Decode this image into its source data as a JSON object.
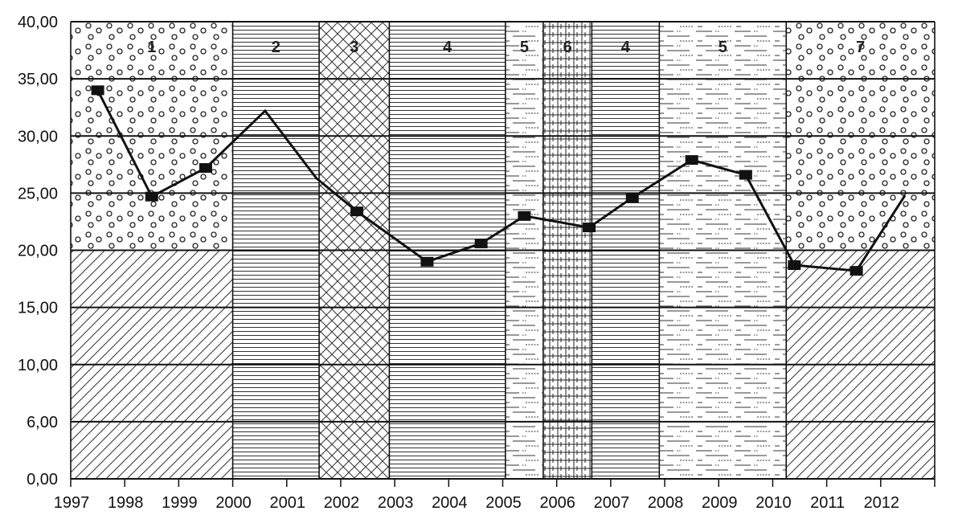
{
  "chart_data": {
    "type": "line",
    "title": "",
    "xlabel": "",
    "ylabel": "",
    "x_labels": [
      "1997",
      "1998",
      "1999",
      "2000",
      "2001",
      "2002",
      "2003",
      "2004",
      "2005",
      "2006",
      "2007",
      "2008",
      "2009",
      "2010",
      "2011",
      "2012"
    ],
    "y_tick_labels": [
      "0,00",
      "6,00",
      "10,00",
      "15,00",
      "20,00",
      "25,00",
      "30,00",
      "35,00",
      "40,00"
    ],
    "ylim": [
      0,
      40
    ],
    "grid": true,
    "zones": [
      {
        "label": "1",
        "from": 0.0,
        "to": 3.0,
        "pattern": "circles"
      },
      {
        "label": "2",
        "from": 3.0,
        "to": 4.6,
        "pattern": "horizontal-lines"
      },
      {
        "label": "3",
        "from": 4.6,
        "to": 5.9,
        "pattern": "cross-hatch"
      },
      {
        "label": "4",
        "from": 5.9,
        "to": 8.05,
        "pattern": "horizontal-lines"
      },
      {
        "label": "5",
        "from": 8.05,
        "to": 8.75,
        "pattern": "dashes"
      },
      {
        "label": "6",
        "from": 8.75,
        "to": 9.65,
        "pattern": "grid"
      },
      {
        "label": "4",
        "from": 9.65,
        "to": 10.9,
        "pattern": "horizontal-lines"
      },
      {
        "label": "5",
        "from": 10.9,
        "to": 13.25,
        "pattern": "dashes"
      },
      {
        "label": "7",
        "from": 13.25,
        "to": 16.0,
        "pattern": "circles"
      }
    ],
    "lower_band_pattern": "diagonal-lines",
    "lower_band_range": [
      0,
      20
    ],
    "series": [
      {
        "points": [
          {
            "x": 0.5,
            "y": 34.0,
            "marker": true
          },
          {
            "x": 1.5,
            "y": 24.7,
            "marker": true
          },
          {
            "x": 2.5,
            "y": 27.2,
            "marker": true
          },
          {
            "x": 3.6,
            "y": 32.2,
            "marker": false
          },
          {
            "x": 4.55,
            "y": 26.3,
            "marker": false
          },
          {
            "x": 5.3,
            "y": 23.4,
            "marker": true
          },
          {
            "x": 6.6,
            "y": 19.0,
            "marker": true
          },
          {
            "x": 7.6,
            "y": 20.6,
            "marker": true
          },
          {
            "x": 8.4,
            "y": 23.0,
            "marker": true
          },
          {
            "x": 9.6,
            "y": 22.0,
            "marker": true
          },
          {
            "x": 10.4,
            "y": 24.6,
            "marker": true
          },
          {
            "x": 11.5,
            "y": 27.9,
            "marker": true
          },
          {
            "x": 12.5,
            "y": 26.6,
            "marker": true
          },
          {
            "x": 13.4,
            "y": 18.7,
            "marker": true
          },
          {
            "x": 14.55,
            "y": 18.2,
            "marker": true
          },
          {
            "x": 15.45,
            "y": 24.8,
            "marker": false
          }
        ]
      }
    ]
  }
}
